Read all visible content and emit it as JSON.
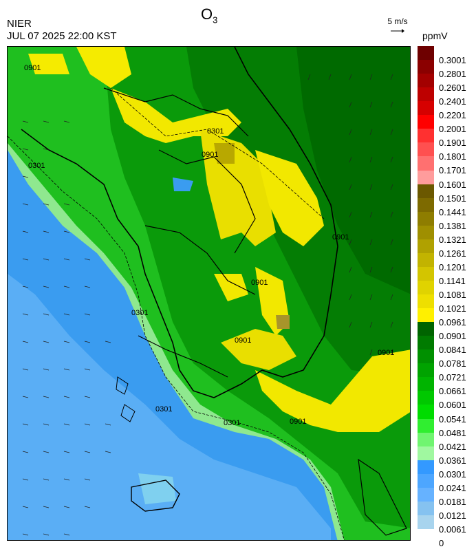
{
  "header": {
    "title_main": "O",
    "title_sub": "3",
    "agency": "NIER",
    "datetime": "JUL 07 2025 22:00 KST",
    "wind_ref_label": "5 m/s",
    "unit": "ppmV"
  },
  "colorbar": {
    "labels": [
      "0.3001",
      "0.2801",
      "0.2601",
      "0.2401",
      "0.2201",
      "0.2001",
      "0.1901",
      "0.1801",
      "0.1701",
      "0.1601",
      "0.1501",
      "0.1441",
      "0.1381",
      "0.1321",
      "0.1261",
      "0.1201",
      "0.1141",
      "0.1081",
      "0.1021",
      "0.0961",
      "0.0901",
      "0.0841",
      "0.0781",
      "0.0721",
      "0.0661",
      "0.0601",
      "0.0541",
      "0.0481",
      "0.0421",
      "0.0361",
      "0.0301",
      "0.0241",
      "0.0181",
      "0.0121",
      "0.0061",
      "0"
    ],
    "colors": [
      "#6e0000",
      "#8b0000",
      "#a30000",
      "#bd0000",
      "#d60000",
      "#ff0000",
      "#ff3030",
      "#ff5050",
      "#ff7070",
      "#ff9c9c",
      "#6b5800",
      "#7d6a00",
      "#8e7d00",
      "#9f8f00",
      "#b0a100",
      "#c2b300",
      "#d3c500",
      "#e0d300",
      "#eedf00",
      "#fff000",
      "#006400",
      "#007b00",
      "#009000",
      "#00a300",
      "#00b400",
      "#00c800",
      "#00dc00",
      "#30ee30",
      "#70f570",
      "#a0f8a0",
      "#3399ff",
      "#4da6ff",
      "#66b2ff",
      "#85c2f0",
      "#a8d4ee"
    ]
  },
  "map": {
    "contour_labels": [
      "0901",
      "0301",
      "0301",
      "0901",
      "0301",
      "0901",
      "0301",
      "0901",
      "0901",
      "0301",
      "0901",
      "0901"
    ]
  }
}
